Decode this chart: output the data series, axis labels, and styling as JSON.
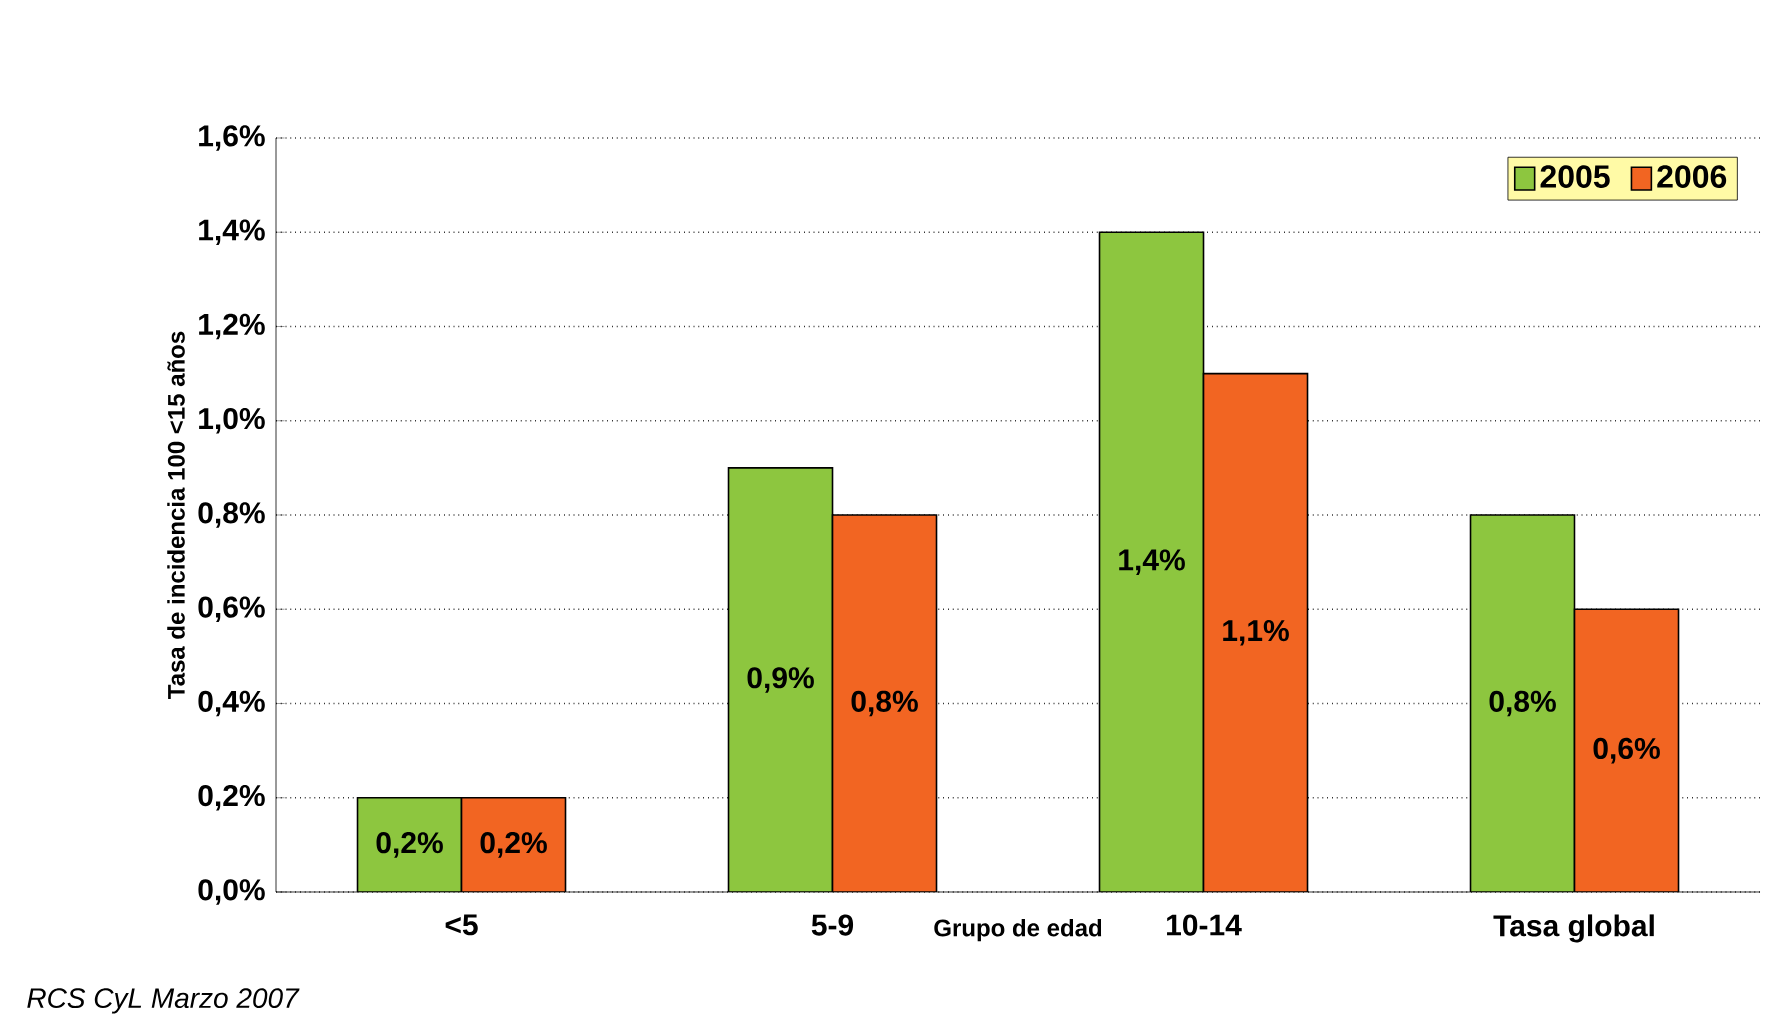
{
  "chart_data": {
    "type": "bar",
    "xlabel": "Grupo de edad",
    "ylabel": "Tasa de incidencia 100 <15 años",
    "categories": [
      "<5",
      "5-9",
      "10-14",
      "Tasa global"
    ],
    "series": [
      {
        "name": "2005",
        "color": "#8dc63f",
        "values": [
          0.2,
          0.9,
          1.4,
          0.8
        ],
        "value_labels": [
          "0,2%",
          "0,9%",
          "1,4%",
          "0,8%"
        ]
      },
      {
        "name": "2006",
        "color": "#f26522",
        "values": [
          0.2,
          0.8,
          1.1,
          0.6
        ],
        "value_labels": [
          "0,2%",
          "0,8%",
          "1,1%",
          "0,6%"
        ]
      }
    ],
    "ylim": [
      0,
      1.6
    ],
    "yticks": [
      {
        "value": 0,
        "label": "0,0%"
      },
      {
        "value": 0.2,
        "label": "0,2%"
      },
      {
        "value": 0.4,
        "label": "0,4%"
      },
      {
        "value": 0.6,
        "label": "0,6%"
      },
      {
        "value": 0.8,
        "label": "0,8%"
      },
      {
        "value": 1.0,
        "label": "1,0%"
      },
      {
        "value": 1.2,
        "label": "1,2%"
      },
      {
        "value": 1.4,
        "label": "1,4%"
      },
      {
        "value": 1.6,
        "label": "1,6%"
      }
    ],
    "grid": "y",
    "legend": "top right",
    "annotations": [
      "RCS CyL Marzo 2007"
    ]
  }
}
